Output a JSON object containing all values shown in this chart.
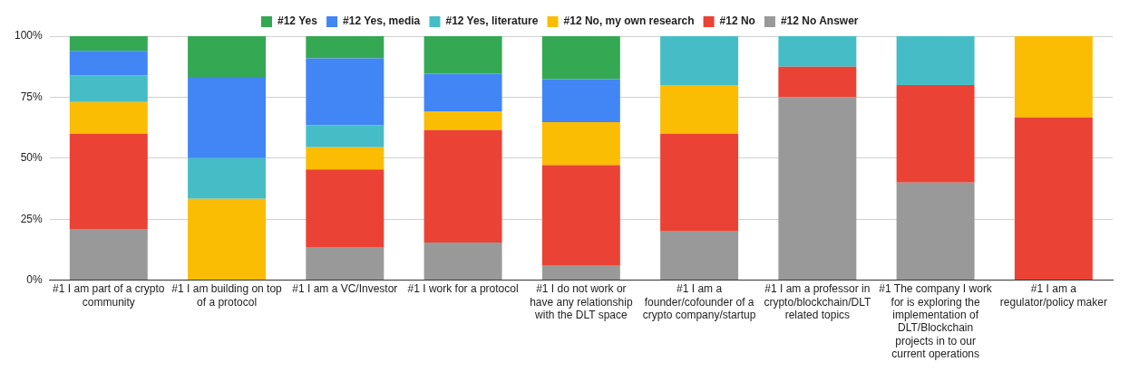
{
  "chart_data": {
    "type": "bar",
    "stacked": true,
    "categories": [
      "#1 I am part of a crypto community",
      "#1 I am building on top of a protocol",
      "#1 I am a VC/Investor",
      "#1 I work for a protocol",
      "#1 I do not work or have any relationship with the DLT space",
      "#1 I am a founder/cofounder of a crypto company/startup",
      "#1 I am a professor in crypto/blockchain/DLT related topics",
      "#1 The company I work for is exploring the implementation of DLT/Blockchain projects in to our current operations",
      "#1 I am a regulator/policy maker"
    ],
    "series": [
      {
        "name": "#12 No Answer",
        "color": "#999999",
        "values": [
          21,
          0,
          13.6,
          15.4,
          5.9,
          20,
          75,
          40,
          0
        ]
      },
      {
        "name": "#12 No",
        "color": "#ea4335",
        "values": [
          39,
          0,
          31.8,
          46.1,
          41.2,
          40,
          12.5,
          40,
          66.7
        ]
      },
      {
        "name": "#12 No, my own research",
        "color": "#fbbc04",
        "values": [
          13,
          33.3,
          9.1,
          7.7,
          17.7,
          20,
          0,
          0,
          33.3
        ]
      },
      {
        "name": "#12 Yes, literature",
        "color": "#46bdc6",
        "values": [
          11,
          16.7,
          9.1,
          0,
          0,
          20,
          12.5,
          20,
          0
        ]
      },
      {
        "name": "#12 Yes, media",
        "color": "#4285f4",
        "values": [
          10,
          33.3,
          27.3,
          15.4,
          17.6,
          0,
          0,
          0,
          0
        ]
      },
      {
        "name": "#12 Yes",
        "color": "#34a853",
        "values": [
          6,
          16.7,
          9.1,
          15.4,
          17.6,
          0,
          0,
          0,
          0
        ]
      }
    ],
    "ylim": [
      0,
      100
    ],
    "yticks": [
      {
        "value": 0,
        "label": "0%"
      },
      {
        "value": 25,
        "label": "25%"
      },
      {
        "value": 50,
        "label": "50%"
      },
      {
        "value": 75,
        "label": "75%"
      },
      {
        "value": 100,
        "label": "100%"
      }
    ],
    "grid": "y",
    "legend": "top"
  }
}
